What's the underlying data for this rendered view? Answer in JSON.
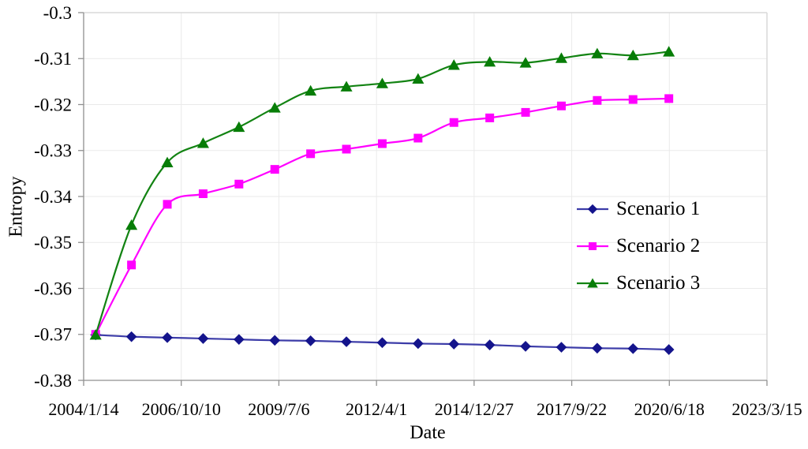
{
  "chart_data": {
    "type": "line",
    "title": "",
    "xlabel": "Date",
    "ylabel": "Entropy",
    "grid": true,
    "legend_position": "middle-right",
    "x_axis": {
      "tick_labels": [
        "2004/1/14",
        "2006/10/10",
        "2009/7/6",
        "2012/4/1",
        "2014/12/27",
        "2017/9/22",
        "2020/6/18",
        "2023/3/15"
      ],
      "tick_interval_days": 1000,
      "total_days": 7000
    },
    "y_axis": {
      "tick_labels": [
        "-0.3",
        "-0.31",
        "-0.32",
        "-0.33",
        "-0.34",
        "-0.35",
        "-0.36",
        "-0.37",
        "-0.38"
      ],
      "max": -0.3,
      "min": -0.38
    },
    "x_days": [
      123,
      490,
      857,
      1224,
      1591,
      1958,
      2325,
      2692,
      3059,
      3426,
      3793,
      4160,
      4527,
      4894,
      5261,
      5628,
      5995
    ],
    "series": [
      {
        "name": "Scenario 1",
        "marker": "diamond",
        "color": "#3C3CA8",
        "marker_color": "#14148C",
        "values": [
          -0.3701,
          -0.3705,
          -0.3707,
          -0.3709,
          -0.3711,
          -0.3713,
          -0.3714,
          -0.3716,
          -0.3718,
          -0.372,
          -0.3721,
          -0.3723,
          -0.3726,
          -0.3728,
          -0.373,
          -0.3731,
          -0.3733
        ]
      },
      {
        "name": "Scenario 2",
        "marker": "square",
        "color": "#FF00FF",
        "marker_color": "#FF00FF",
        "values": [
          -0.37,
          -0.3549,
          -0.3417,
          -0.3394,
          -0.3373,
          -0.3341,
          -0.3307,
          -0.3297,
          -0.3285,
          -0.3273,
          -0.3239,
          -0.3229,
          -0.3217,
          -0.3203,
          -0.3191,
          -0.3189,
          -0.3187
        ]
      },
      {
        "name": "Scenario 3",
        "marker": "triangle",
        "color": "#128312",
        "marker_color": "#077D07",
        "values": [
          -0.3701,
          -0.3462,
          -0.3326,
          -0.3284,
          -0.3249,
          -0.3207,
          -0.317,
          -0.3161,
          -0.3154,
          -0.3144,
          -0.3114,
          -0.3107,
          -0.3109,
          -0.3099,
          -0.3089,
          -0.3093,
          -0.3085
        ]
      }
    ]
  },
  "style": {
    "background": "#FFFFFF",
    "grid_color": "#EAEAEA",
    "frame_color": "#D9D9D9",
    "axis_color": "#909090",
    "text_color": "#000000"
  }
}
